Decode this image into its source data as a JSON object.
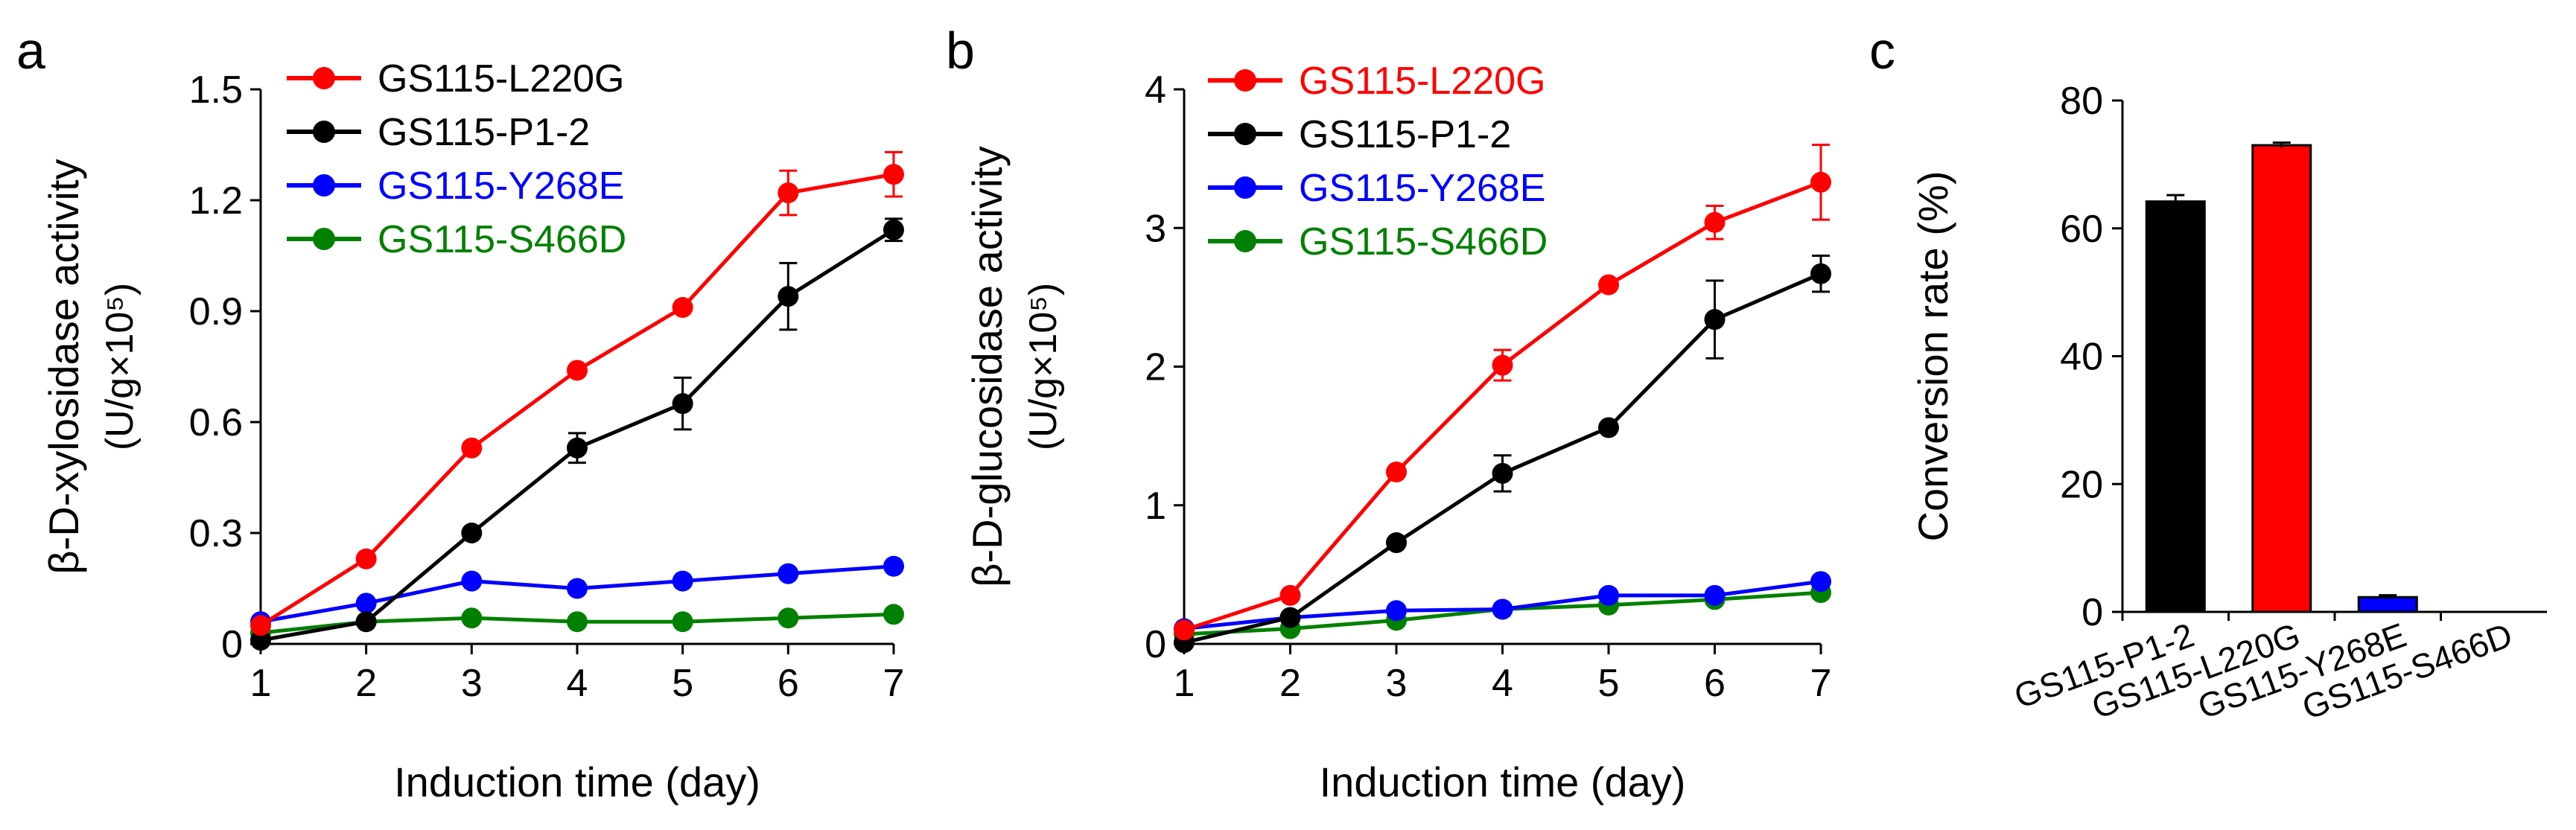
{
  "chart_data": [
    {
      "panel": "a",
      "type": "line",
      "title": "",
      "xlabel": "Induction time (day)",
      "ylabel": "β-D-xylosidase activity",
      "ylabel2": "(U/g×10⁵)",
      "x": [
        1,
        2,
        3,
        4,
        5,
        6,
        7
      ],
      "xlim": [
        1,
        7
      ],
      "ylim": [
        0,
        1.5
      ],
      "yticks": [
        "0",
        "0.3",
        "0.6",
        "0.9",
        "1.2",
        "1.5"
      ],
      "legend_position": "top-left",
      "series": [
        {
          "name": "GS115-L220G",
          "color": "#ff0000",
          "label_color": "#000000",
          "values": [
            0.05,
            0.23,
            0.53,
            0.74,
            0.91,
            1.22,
            1.27
          ],
          "errors": [
            0.0,
            0.0,
            0.0,
            0.0,
            0.0,
            0.06,
            0.06
          ]
        },
        {
          "name": "GS115-P1-2",
          "color": "#000000",
          "label_color": "#000000",
          "values": [
            0.01,
            0.06,
            0.3,
            0.53,
            0.65,
            0.94,
            1.12
          ],
          "errors": [
            0.0,
            0.0,
            0.0,
            0.04,
            0.07,
            0.09,
            0.03
          ]
        },
        {
          "name": "GS115-Y268E",
          "color": "#0000ff",
          "label_color": "#0000ff",
          "values": [
            0.06,
            0.11,
            0.17,
            0.15,
            0.17,
            0.19,
            0.21
          ],
          "errors": [
            0,
            0,
            0,
            0,
            0,
            0,
            0
          ]
        },
        {
          "name": "GS115-S466D",
          "color": "#008000",
          "label_color": "#008000",
          "values": [
            0.03,
            0.06,
            0.07,
            0.06,
            0.06,
            0.07,
            0.08
          ],
          "errors": [
            0,
            0,
            0,
            0,
            0,
            0,
            0
          ]
        }
      ]
    },
    {
      "panel": "b",
      "type": "line",
      "title": "",
      "xlabel": "Induction time (day)",
      "ylabel": "β-D-glucosidase activity",
      "ylabel2": "(U/g×10⁵)",
      "x": [
        1,
        2,
        3,
        4,
        5,
        6,
        7
      ],
      "xlim": [
        1,
        7
      ],
      "ylim": [
        0,
        4
      ],
      "yticks": [
        "0",
        "1",
        "2",
        "3",
        "4"
      ],
      "legend_position": "top-left",
      "series": [
        {
          "name": "GS115-L220G",
          "color": "#ff0000",
          "label_color": "#ff0000",
          "values": [
            0.1,
            0.35,
            1.24,
            2.01,
            2.59,
            3.04,
            3.33
          ],
          "errors": [
            0.0,
            0.0,
            0.0,
            0.11,
            0.0,
            0.12,
            0.27
          ]
        },
        {
          "name": "GS115-P1-2",
          "color": "#000000",
          "label_color": "#000000",
          "values": [
            0.01,
            0.19,
            0.73,
            1.23,
            1.56,
            2.34,
            2.67
          ],
          "errors": [
            0.0,
            0.0,
            0.0,
            0.13,
            0.0,
            0.28,
            0.13
          ]
        },
        {
          "name": "GS115-Y268E",
          "color": "#0000ff",
          "label_color": "#0000ff",
          "values": [
            0.11,
            0.19,
            0.24,
            0.25,
            0.35,
            0.35,
            0.45
          ],
          "errors": [
            0,
            0,
            0,
            0,
            0,
            0,
            0
          ]
        },
        {
          "name": "GS115-S466D",
          "color": "#008000",
          "label_color": "#008000",
          "values": [
            0.07,
            0.11,
            0.17,
            0.25,
            0.28,
            0.32,
            0.37
          ],
          "errors": [
            0,
            0,
            0,
            0,
            0,
            0,
            0
          ]
        }
      ]
    },
    {
      "panel": "c",
      "type": "bar",
      "title": "",
      "xlabel": "",
      "ylabel": "Conversion rate (%)",
      "ylim": [
        0,
        80
      ],
      "yticks": [
        "0",
        "20",
        "40",
        "60",
        "80"
      ],
      "categories": [
        "GS115-P1-2",
        "GS115-L220G",
        "GS115-Y268E",
        "GS115-S466D"
      ],
      "values": [
        64.2,
        73.0,
        2.3,
        0
      ],
      "errors": [
        1.0,
        0.4,
        0.3,
        0
      ],
      "colors": [
        "#000000",
        "#ff0000",
        "#0000ff",
        "#ffffff"
      ]
    }
  ]
}
